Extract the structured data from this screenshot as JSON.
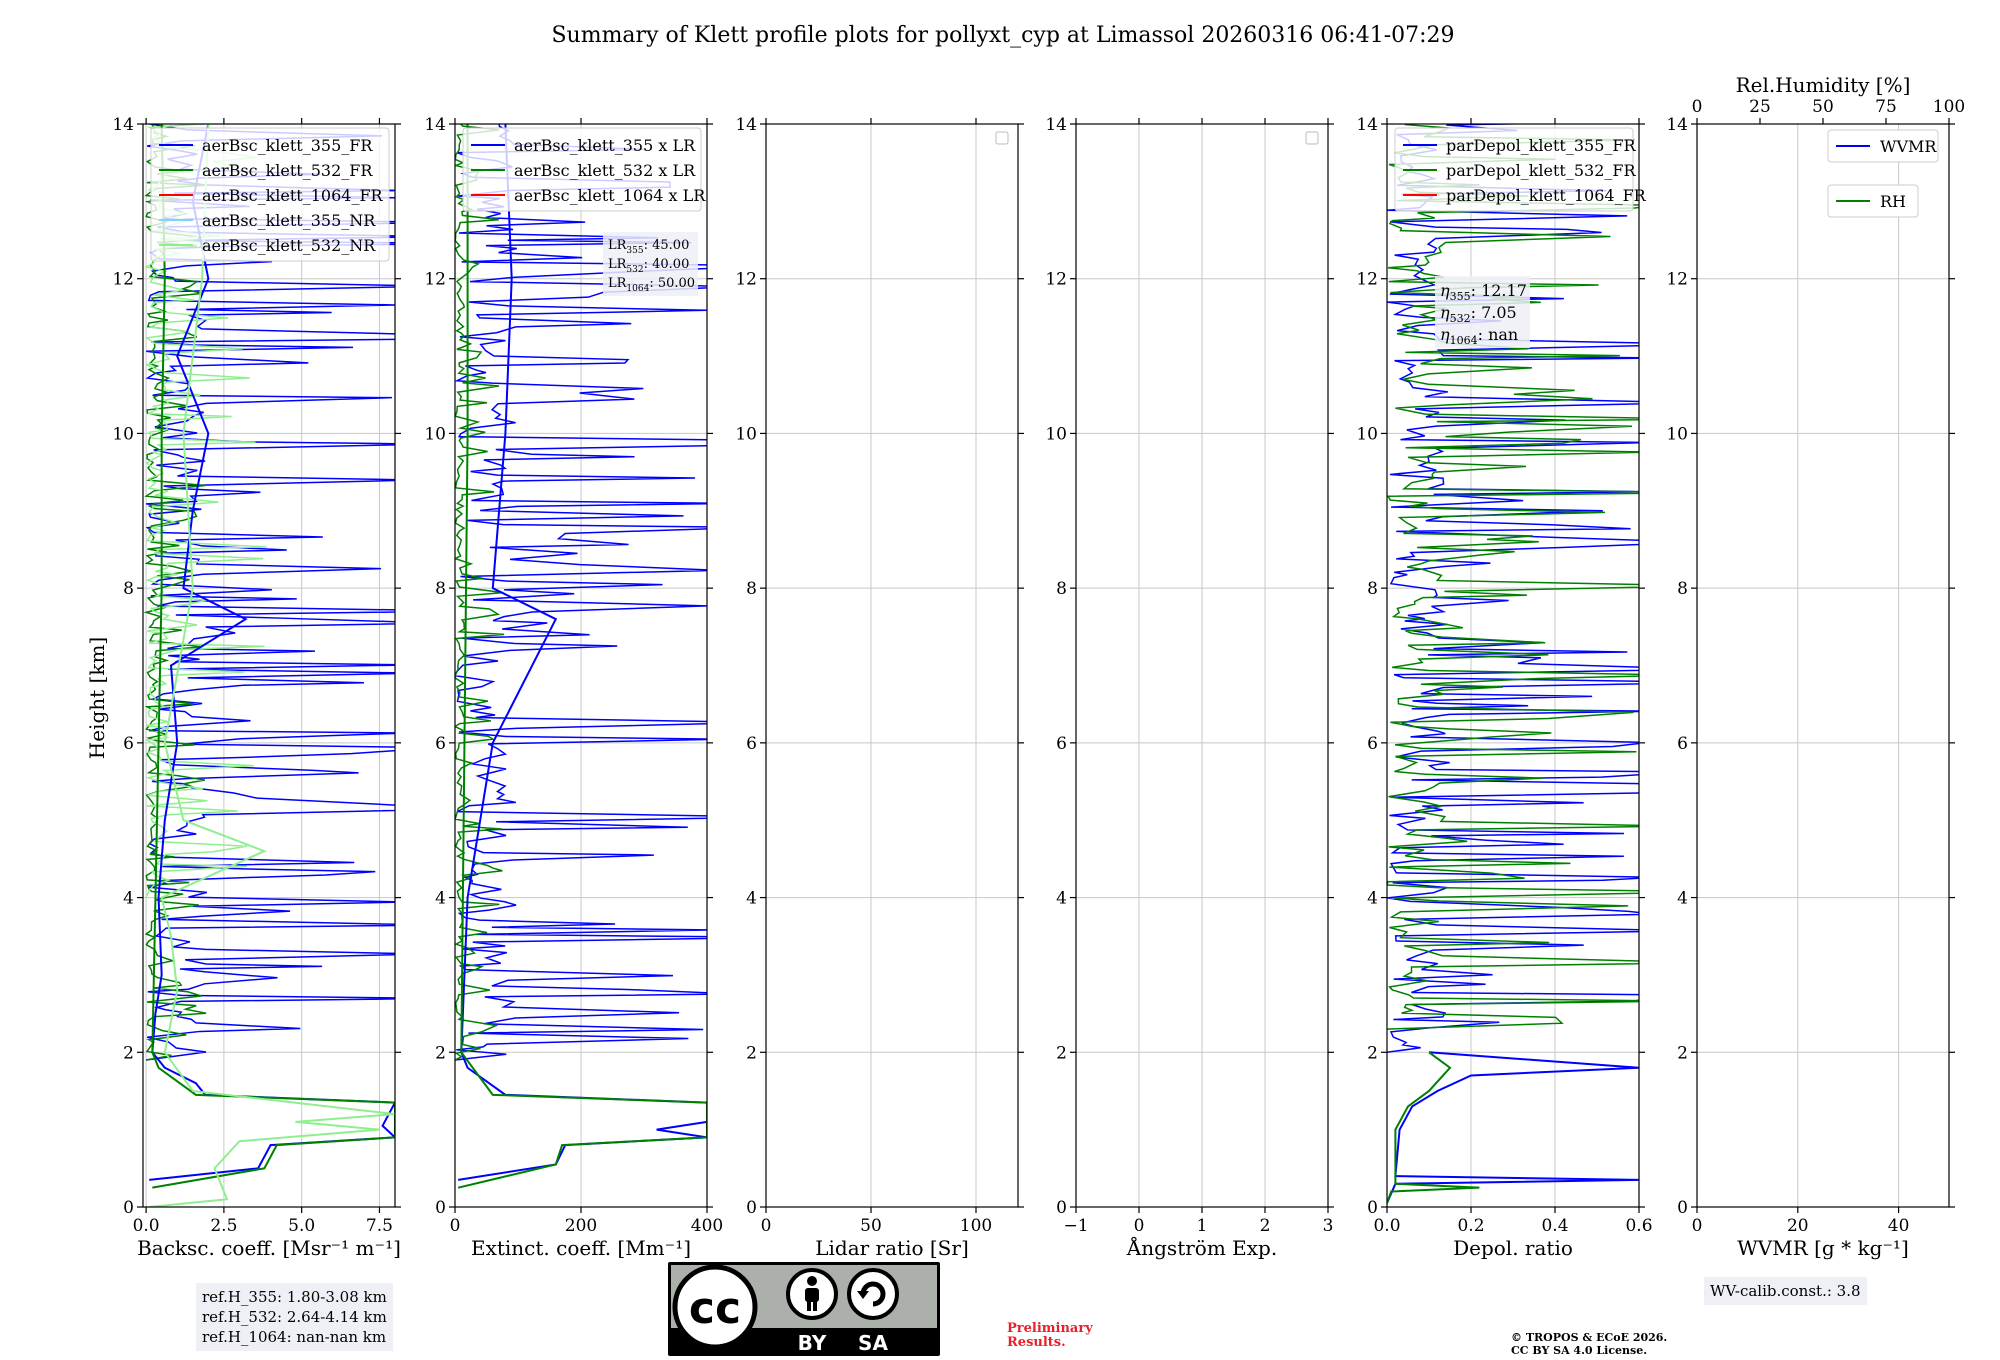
{
  "chart_data": {
    "title": "Summary of Klett profile plots for pollyxt_cyp at Limassol 20260316 06:41-07:29",
    "type": "line",
    "ylabel": "Height [km]",
    "ylim": [
      0,
      14
    ],
    "yticks": [
      "0",
      "2",
      "4",
      "6",
      "8",
      "10",
      "12",
      "14"
    ],
    "panels": [
      {
        "id": "backscatter",
        "xlabel": "Backsc. coeff. [Msr⁻¹ m⁻¹]",
        "xlim": [
          -0.1,
          8
        ],
        "xticks": [
          {
            "v": 0,
            "t": "0.0"
          },
          {
            "v": 2.5,
            "t": "2.5"
          },
          {
            "v": 5,
            "t": "5.0"
          },
          {
            "v": 7.5,
            "t": "7.5"
          }
        ],
        "legend": [
          {
            "label": "aerBsc_klett_355_FR",
            "color": "#0000ff"
          },
          {
            "label": "aerBsc_klett_532_FR",
            "color": "#008000"
          },
          {
            "label": "aerBsc_klett_1064_FR",
            "color": "#ff0000"
          },
          {
            "label": "aerBsc_klett_355_NR",
            "color": "#87cefa"
          },
          {
            "label": "aerBsc_klett_532_NR",
            "color": "#90ee90"
          }
        ],
        "series": [
          {
            "name": "aerBsc_klett_355_FR",
            "color": "#0000ff",
            "profile": [
              [
                0.35,
                0.1
              ],
              [
                0.5,
                3.6
              ],
              [
                0.8,
                4.0
              ],
              [
                0.9,
                8.0
              ],
              [
                1.05,
                7.6
              ],
              [
                1.35,
                8.0
              ],
              [
                1.45,
                1.9
              ],
              [
                1.6,
                1.6
              ],
              [
                1.8,
                0.6
              ],
              [
                2.0,
                0.2
              ],
              [
                2.5,
                0.3
              ],
              [
                3.0,
                0.5
              ],
              [
                4.0,
                0.4
              ],
              [
                5.0,
                0.6
              ],
              [
                6.0,
                1.0
              ],
              [
                7.0,
                0.8
              ],
              [
                7.6,
                3.2
              ],
              [
                8.0,
                1.2
              ],
              [
                9.0,
                1.5
              ],
              [
                10.0,
                2.0
              ],
              [
                11.0,
                1.0
              ],
              [
                12.0,
                2.0
              ],
              [
                13.0,
                1.5
              ],
              [
                14.0,
                2.0
              ]
            ]
          },
          {
            "name": "aerBsc_klett_532_FR",
            "color": "#008000",
            "profile": [
              [
                0.25,
                0.2
              ],
              [
                0.5,
                3.8
              ],
              [
                0.8,
                4.2
              ],
              [
                0.9,
                8.0
              ],
              [
                1.35,
                8.0
              ],
              [
                1.45,
                1.6
              ],
              [
                1.8,
                0.4
              ],
              [
                2.0,
                0.2
              ],
              [
                4.0,
                0.3
              ],
              [
                6.0,
                0.4
              ],
              [
                8.0,
                0.5
              ],
              [
                10.0,
                0.5
              ],
              [
                12.0,
                0.6
              ],
              [
                14.0,
                0.5
              ]
            ]
          },
          {
            "name": "aerBsc_klett_532_NR",
            "color": "#90ee90",
            "profile": [
              [
                0.0,
                0.1
              ],
              [
                0.1,
                2.6
              ],
              [
                0.5,
                2.2
              ],
              [
                0.85,
                3.0
              ],
              [
                1.0,
                7.5
              ],
              [
                1.1,
                4.8
              ],
              [
                1.2,
                8.0
              ],
              [
                1.5,
                1.5
              ],
              [
                2.0,
                0.6
              ],
              [
                2.8,
                1.0
              ],
              [
                3.5,
                0.8
              ],
              [
                4.0,
                0.5
              ],
              [
                4.6,
                3.8
              ],
              [
                5.0,
                1.2
              ],
              [
                6.0,
                0.6
              ],
              [
                8.0,
                1.5
              ],
              [
                10.0,
                1.2
              ],
              [
                12.0,
                1.8
              ],
              [
                14.0,
                2.0
              ]
            ]
          }
        ],
        "noise": [
          {
            "color": "#0000ff",
            "from": 1.9,
            "to": 14,
            "max": 8.0,
            "seed": 3
          },
          {
            "color": "#008000",
            "from": 1.9,
            "to": 14,
            "max": 1.5,
            "seed": 7
          },
          {
            "color": "#90ee90",
            "from": 4.0,
            "to": 14,
            "max": 3.0,
            "seed": 11
          }
        ],
        "info": []
      },
      {
        "id": "extinction",
        "xlabel": "Extinct. coeff. [Mm⁻¹]",
        "xlim": [
          0,
          400
        ],
        "xticks": [
          {
            "v": 0,
            "t": "0"
          },
          {
            "v": 200,
            "t": "200"
          },
          {
            "v": 400,
            "t": "400"
          }
        ],
        "legend": [
          {
            "label": "aerBsc_klett_355 x LR",
            "color": "#0000ff"
          },
          {
            "label": "aerBsc_klett_532 x LR",
            "color": "#008000"
          },
          {
            "label": "aerBsc_klett_1064 x LR",
            "color": "#ff0000"
          }
        ],
        "series": [
          {
            "name": "aerBsc_klett_355 x LR",
            "color": "#0000ff",
            "profile": [
              [
                0.35,
                5
              ],
              [
                0.55,
                160
              ],
              [
                0.8,
                175
              ],
              [
                0.9,
                400
              ],
              [
                1.0,
                320
              ],
              [
                1.1,
                400
              ],
              [
                1.35,
                400
              ],
              [
                1.45,
                80
              ],
              [
                1.8,
                20
              ],
              [
                2.0,
                10
              ],
              [
                4.0,
                20
              ],
              [
                6.0,
                60
              ],
              [
                7.6,
                160
              ],
              [
                8.0,
                60
              ],
              [
                10.0,
                80
              ],
              [
                12.0,
                90
              ],
              [
                14.0,
                80
              ]
            ]
          },
          {
            "name": "aerBsc_klett_532 x LR",
            "color": "#008000",
            "profile": [
              [
                0.25,
                5
              ],
              [
                0.55,
                160
              ],
              [
                0.8,
                170
              ],
              [
                0.9,
                400
              ],
              [
                1.35,
                400
              ],
              [
                1.45,
                60
              ],
              [
                2.0,
                10
              ],
              [
                6.0,
                15
              ],
              [
                10.0,
                20
              ],
              [
                14.0,
                20
              ]
            ]
          }
        ],
        "noise": [
          {
            "color": "#0000ff",
            "from": 1.9,
            "to": 14,
            "max": 400,
            "seed": 5
          },
          {
            "color": "#008000",
            "from": 1.9,
            "to": 14,
            "max": 60,
            "seed": 9
          }
        ],
        "info": [
          "LR355: 45.00",
          "LR532: 40.00",
          "LR1064: 50.00"
        ]
      },
      {
        "id": "lidar-ratio",
        "xlabel": "Lidar ratio [Sr]",
        "xlim": [
          0,
          120
        ],
        "xticks": [
          {
            "v": 0,
            "t": "0"
          },
          {
            "v": 50,
            "t": "50"
          },
          {
            "v": 100,
            "t": "100"
          }
        ],
        "legend": [],
        "series": [],
        "noise": [],
        "info": [],
        "empty_legend": true
      },
      {
        "id": "angstrom",
        "xlabel": "Ångström Exp.",
        "xlim": [
          -1,
          3
        ],
        "xticks": [
          {
            "v": -1,
            "t": "−1"
          },
          {
            "v": 0,
            "t": "0"
          },
          {
            "v": 1,
            "t": "1"
          },
          {
            "v": 2,
            "t": "2"
          },
          {
            "v": 3,
            "t": "3"
          }
        ],
        "legend": [],
        "series": [],
        "noise": [],
        "info": [],
        "empty_legend": true
      },
      {
        "id": "depol",
        "xlabel": "Depol. ratio",
        "xlim": [
          0,
          0.6
        ],
        "xticks": [
          {
            "v": 0,
            "t": "0.0"
          },
          {
            "v": 0.2,
            "t": "0.2"
          },
          {
            "v": 0.4,
            "t": "0.4"
          },
          {
            "v": 0.6,
            "t": "0.6"
          }
        ],
        "legend": [
          {
            "label": "parDepol_klett_355_FR",
            "color": "#0000ff"
          },
          {
            "label": "parDepol_klett_532_FR",
            "color": "#008000"
          },
          {
            "label": "parDepol_klett_1064_FR",
            "color": "#ff0000"
          }
        ],
        "series": [
          {
            "name": "parDepol_klett_355_FR",
            "color": "#0000ff",
            "profile": [
              [
                0.05,
                0.0
              ],
              [
                0.3,
                0.02
              ],
              [
                0.35,
                0.6
              ],
              [
                0.4,
                0.02
              ],
              [
                1.0,
                0.03
              ],
              [
                1.3,
                0.06
              ],
              [
                1.5,
                0.12
              ],
              [
                1.7,
                0.2
              ],
              [
                1.8,
                0.6
              ],
              [
                2.0,
                0.1
              ]
            ]
          },
          {
            "name": "parDepol_klett_532_FR",
            "color": "#008000",
            "profile": [
              [
                0.05,
                0.0
              ],
              [
                0.2,
                0.01
              ],
              [
                0.25,
                0.22
              ],
              [
                0.3,
                0.02
              ],
              [
                1.0,
                0.02
              ],
              [
                1.3,
                0.05
              ],
              [
                1.5,
                0.1
              ],
              [
                1.8,
                0.15
              ],
              [
                2.0,
                0.1
              ]
            ]
          }
        ],
        "noise": [
          {
            "color": "#0000ff",
            "from": 2.0,
            "to": 14,
            "max": 0.6,
            "seed": 13
          },
          {
            "color": "#008000",
            "from": 2.3,
            "to": 14,
            "max": 0.6,
            "seed": 17
          }
        ],
        "info": [
          "η355: 12.17",
          "η532: 7.05",
          "η1064: nan"
        ]
      },
      {
        "id": "wvmr",
        "xlabel": "WVMR [g * kg⁻¹]",
        "xlim": [
          0,
          50
        ],
        "xticks": [
          {
            "v": 0,
            "t": "0"
          },
          {
            "v": 20,
            "t": "20"
          },
          {
            "v": 40,
            "t": "40"
          }
        ],
        "top_xlabel": "Rel.Humidity [%]",
        "top_xlim": [
          0,
          100
        ],
        "top_xticks": [
          {
            "v": 0,
            "t": "0"
          },
          {
            "v": 25,
            "t": "25"
          },
          {
            "v": 50,
            "t": "50"
          },
          {
            "v": 75,
            "t": "75"
          },
          {
            "v": 100,
            "t": "100"
          }
        ],
        "legend": [],
        "legend_split": [
          {
            "label": "WVMR",
            "color": "#0000ff"
          },
          {
            "label": "RH",
            "color": "#008000"
          }
        ],
        "series": [],
        "noise": [],
        "info": []
      }
    ]
  },
  "footer": {
    "ref_heights": [
      "ref.H_355: 1.80-3.08 km",
      "ref.H_532: 2.64-4.14 km",
      "ref.H_1064: nan-nan km"
    ],
    "wv_calib": "WV-calib.const.: 3.8",
    "preliminary": [
      "Preliminary",
      "Results."
    ],
    "copyright": [
      "© TROPOS & ECoE 2026.",
      "CC BY SA 4.0 License."
    ],
    "license_badge": {
      "cc": "cc",
      "by": "BY",
      "sa": "SA"
    }
  }
}
